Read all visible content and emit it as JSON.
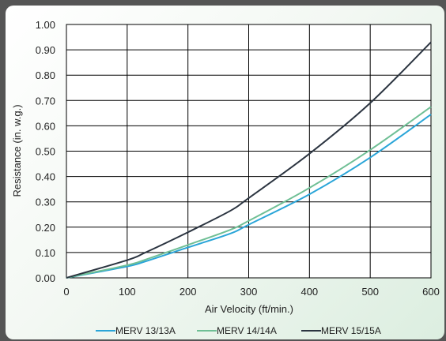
{
  "chart_data": {
    "type": "line",
    "xlabel": "Air Velocity (ft/min.)",
    "ylabel": "Resistance (in. w.g.)",
    "xlim": [
      0,
      600
    ],
    "ylim": [
      0,
      1.0
    ],
    "x_ticks": [
      "0",
      "100",
      "200",
      "300",
      "400",
      "500",
      "600"
    ],
    "y_ticks": [
      "0.00",
      "0.10",
      "0.20",
      "0.30",
      "0.40",
      "0.50",
      "0.60",
      "0.70",
      "0.80",
      "0.90",
      "1.00"
    ],
    "grid": true,
    "legend_position": "bottom",
    "x": [
      0,
      100,
      130,
      200,
      270,
      300,
      400,
      500,
      600
    ],
    "series": [
      {
        "name": "MERV 13/13A",
        "color": "#2aa5d8",
        "values": [
          0.0,
          0.045,
          0.065,
          0.12,
          0.175,
          0.21,
          0.33,
          0.475,
          0.645
        ]
      },
      {
        "name": "MERV 14/14A",
        "color": "#6fbf95",
        "values": [
          0.0,
          0.05,
          0.072,
          0.13,
          0.19,
          0.225,
          0.355,
          0.505,
          0.675
        ]
      },
      {
        "name": "MERV 15/15A",
        "color": "#2b3440",
        "values": [
          0.0,
          0.07,
          0.1,
          0.18,
          0.265,
          0.315,
          0.49,
          0.69,
          0.93
        ]
      }
    ]
  }
}
